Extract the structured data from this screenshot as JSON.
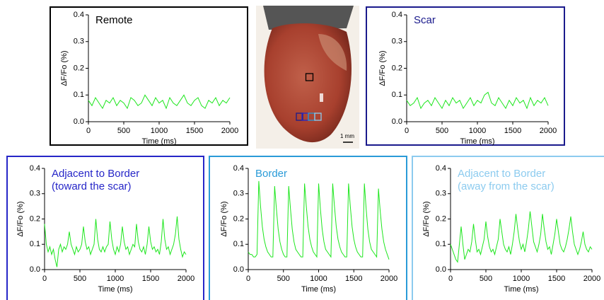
{
  "chart_data": [
    {
      "type": "line",
      "title": "Remote",
      "frame_color": "#000000",
      "color": "#1ee61e",
      "xlabel": "Time (ms)",
      "ylabel": "ΔF/Fo (%)",
      "xlim": [
        0,
        2000
      ],
      "xticks": [
        0,
        500,
        1000,
        1500,
        2000
      ],
      "ylim": [
        0,
        0.4
      ],
      "yticks": [
        {
          "value": 0,
          "label": "0.0"
        },
        0.1,
        0.2,
        0.3,
        0.4
      ],
      "x": [
        0,
        50,
        100,
        150,
        200,
        250,
        300,
        350,
        400,
        450,
        500,
        550,
        600,
        650,
        700,
        750,
        800,
        850,
        900,
        950,
        1000,
        1050,
        1100,
        1150,
        1200,
        1250,
        1300,
        1350,
        1400,
        1450,
        1500,
        1550,
        1600,
        1650,
        1700,
        1750,
        1800,
        1850,
        1900,
        1950,
        2000
      ],
      "values": [
        0.08,
        0.06,
        0.09,
        0.07,
        0.05,
        0.08,
        0.07,
        0.09,
        0.06,
        0.08,
        0.07,
        0.05,
        0.09,
        0.08,
        0.06,
        0.07,
        0.1,
        0.08,
        0.06,
        0.09,
        0.07,
        0.08,
        0.05,
        0.09,
        0.07,
        0.06,
        0.08,
        0.1,
        0.07,
        0.06,
        0.08,
        0.09,
        0.06,
        0.05,
        0.08,
        0.07,
        0.09,
        0.06,
        0.08,
        0.07,
        0.09
      ]
    },
    {
      "type": "line",
      "title": "Scar",
      "frame_color": "#1a1a8c",
      "color": "#1ee61e",
      "xlabel": "Time (ms)",
      "ylabel": "ΔF/Fo (%)",
      "xlim": [
        0,
        2000
      ],
      "xticks": [
        0,
        500,
        1000,
        1500,
        2000
      ],
      "ylim": [
        0,
        0.4
      ],
      "yticks": [
        {
          "value": 0,
          "label": "0.0"
        },
        0.1,
        0.2,
        0.3,
        0.4
      ],
      "x": [
        0,
        50,
        100,
        150,
        200,
        250,
        300,
        350,
        400,
        450,
        500,
        550,
        600,
        650,
        700,
        750,
        800,
        850,
        900,
        950,
        1000,
        1050,
        1100,
        1150,
        1200,
        1250,
        1300,
        1350,
        1400,
        1450,
        1500,
        1550,
        1600,
        1650,
        1700,
        1750,
        1800,
        1850,
        1900,
        1950,
        2000
      ],
      "values": [
        0.08,
        0.06,
        0.07,
        0.09,
        0.05,
        0.07,
        0.08,
        0.06,
        0.09,
        0.07,
        0.05,
        0.08,
        0.06,
        0.09,
        0.07,
        0.08,
        0.05,
        0.07,
        0.09,
        0.06,
        0.08,
        0.07,
        0.1,
        0.11,
        0.07,
        0.06,
        0.09,
        0.07,
        0.05,
        0.08,
        0.06,
        0.09,
        0.07,
        0.08,
        0.05,
        0.09,
        0.06,
        0.08,
        0.07,
        0.09,
        0.06
      ]
    },
    {
      "type": "line",
      "title": "Adjacent to Border",
      "subtitle": "(toward the scar)",
      "frame_color": "#2626c8",
      "color": "#1ee61e",
      "xlabel": "Time (ms)",
      "ylabel": "ΔF/Fo (%)",
      "xlim": [
        0,
        2000
      ],
      "xticks": [
        0,
        500,
        1000,
        1500,
        2000
      ],
      "ylim": [
        0,
        0.4
      ],
      "yticks": [
        {
          "value": 0,
          "label": "0.0"
        },
        0.1,
        0.2,
        0.3,
        0.4
      ],
      "x": [
        0,
        25,
        50,
        75,
        100,
        125,
        150,
        175,
        200,
        225,
        250,
        275,
        300,
        325,
        350,
        375,
        400,
        425,
        450,
        475,
        500,
        525,
        550,
        575,
        600,
        625,
        650,
        675,
        700,
        725,
        750,
        775,
        800,
        825,
        850,
        875,
        900,
        925,
        950,
        975,
        1000,
        1025,
        1050,
        1075,
        1100,
        1125,
        1150,
        1175,
        1200,
        1225,
        1250,
        1275,
        1300,
        1325,
        1350,
        1375,
        1400,
        1425,
        1450,
        1475,
        1500,
        1525,
        1550,
        1575,
        1600,
        1625,
        1650,
        1675,
        1700,
        1725,
        1750,
        1775,
        1800,
        1825,
        1850,
        1875,
        1900,
        1925,
        1950,
        1975,
        2000
      ],
      "values": [
        0.18,
        0.1,
        0.07,
        0.09,
        0.06,
        0.08,
        0.04,
        0.01,
        0.08,
        0.1,
        0.07,
        0.09,
        0.08,
        0.1,
        0.15,
        0.1,
        0.08,
        0.06,
        0.09,
        0.07,
        0.08,
        0.1,
        0.17,
        0.11,
        0.08,
        0.09,
        0.06,
        0.08,
        0.1,
        0.2,
        0.12,
        0.08,
        0.07,
        0.09,
        0.07,
        0.09,
        0.1,
        0.19,
        0.12,
        0.08,
        0.06,
        0.09,
        0.07,
        0.1,
        0.17,
        0.11,
        0.08,
        0.09,
        0.06,
        0.08,
        0.1,
        0.09,
        0.18,
        0.11,
        0.08,
        0.07,
        0.09,
        0.06,
        0.1,
        0.17,
        0.11,
        0.08,
        0.09,
        0.07,
        0.08,
        0.06,
        0.11,
        0.2,
        0.12,
        0.08,
        0.09,
        0.06,
        0.08,
        0.1,
        0.14,
        0.21,
        0.12,
        0.08,
        0.05,
        0.07,
        0.06
      ]
    },
    {
      "type": "line",
      "title": "Border",
      "frame_color": "#2a9bd8",
      "color": "#1ee61e",
      "xlabel": "Time (ms)",
      "ylabel": "ΔF/Fo (%)",
      "xlim": [
        0,
        2000
      ],
      "xticks": [
        0,
        500,
        1000,
        1500,
        2000
      ],
      "ylim": [
        0,
        0.4
      ],
      "yticks": [
        {
          "value": 0,
          "label": "0.0"
        },
        0.1,
        0.2,
        0.3,
        0.4
      ],
      "x": [
        0,
        25,
        50,
        75,
        100,
        125,
        150,
        175,
        200,
        225,
        250,
        275,
        300,
        325,
        350,
        375,
        400,
        425,
        450,
        475,
        500,
        525,
        550,
        575,
        600,
        625,
        650,
        675,
        700,
        725,
        750,
        775,
        800,
        825,
        850,
        875,
        900,
        925,
        950,
        975,
        1000,
        1025,
        1050,
        1075,
        1100,
        1125,
        1150,
        1175,
        1200,
        1225,
        1250,
        1275,
        1300,
        1325,
        1350,
        1375,
        1400,
        1425,
        1450,
        1475,
        1500,
        1525,
        1550,
        1575,
        1600,
        1625,
        1650,
        1675,
        1700,
        1725,
        1750,
        1775,
        1800,
        1825,
        1850,
        1875,
        1900,
        1925,
        1950,
        1975,
        2000
      ],
      "values": [
        0.07,
        0.06,
        0.06,
        0.05,
        0.05,
        0.06,
        0.35,
        0.25,
        0.17,
        0.12,
        0.09,
        0.07,
        0.06,
        0.05,
        0.05,
        0.33,
        0.24,
        0.16,
        0.11,
        0.08,
        0.06,
        0.05,
        0.05,
        0.33,
        0.24,
        0.16,
        0.11,
        0.08,
        0.07,
        0.06,
        0.05,
        0.05,
        0.34,
        0.25,
        0.17,
        0.12,
        0.09,
        0.07,
        0.06,
        0.05,
        0.34,
        0.24,
        0.16,
        0.11,
        0.08,
        0.07,
        0.06,
        0.05,
        0.34,
        0.25,
        0.17,
        0.12,
        0.09,
        0.07,
        0.06,
        0.05,
        0.05,
        0.34,
        0.25,
        0.17,
        0.12,
        0.09,
        0.07,
        0.06,
        0.05,
        0.05,
        0.34,
        0.24,
        0.16,
        0.11,
        0.08,
        0.07,
        0.06,
        0.05,
        0.32,
        0.23,
        0.16,
        0.11,
        0.08,
        0.06,
        0.04
      ]
    },
    {
      "type": "line",
      "title": "Adjacent to Border",
      "subtitle": "(away from the scar)",
      "frame_color": "#8ccbef",
      "color": "#1ee61e",
      "xlabel": "Time (ms)",
      "ylabel": "ΔF/Fo (%)",
      "xlim": [
        0,
        2000
      ],
      "xticks": [
        0,
        500,
        1000,
        1500,
        2000
      ],
      "ylim": [
        0,
        0.4
      ],
      "yticks": [
        {
          "value": 0,
          "label": "0.0"
        },
        0.1,
        0.2,
        0.3,
        0.4
      ],
      "x": [
        0,
        25,
        50,
        75,
        100,
        125,
        150,
        175,
        200,
        225,
        250,
        275,
        300,
        325,
        350,
        375,
        400,
        425,
        450,
        475,
        500,
        525,
        550,
        575,
        600,
        625,
        650,
        675,
        700,
        725,
        750,
        775,
        800,
        825,
        850,
        875,
        900,
        925,
        950,
        975,
        1000,
        1025,
        1050,
        1075,
        1100,
        1125,
        1150,
        1175,
        1200,
        1225,
        1250,
        1275,
        1300,
        1325,
        1350,
        1375,
        1400,
        1425,
        1450,
        1475,
        1500,
        1525,
        1550,
        1575,
        1600,
        1625,
        1650,
        1675,
        1700,
        1725,
        1750,
        1775,
        1800,
        1825,
        1850,
        1875,
        1900,
        1925,
        1950,
        1975,
        2000
      ],
      "values": [
        0.1,
        0.08,
        0.06,
        0.04,
        0.03,
        0.1,
        0.17,
        0.1,
        0.04,
        0.06,
        0.08,
        0.07,
        0.11,
        0.18,
        0.12,
        0.07,
        0.08,
        0.06,
        0.09,
        0.12,
        0.19,
        0.13,
        0.09,
        0.07,
        0.08,
        0.06,
        0.09,
        0.12,
        0.2,
        0.15,
        0.1,
        0.08,
        0.07,
        0.09,
        0.06,
        0.1,
        0.15,
        0.22,
        0.16,
        0.11,
        0.08,
        0.1,
        0.07,
        0.11,
        0.16,
        0.23,
        0.17,
        0.11,
        0.09,
        0.07,
        0.1,
        0.14,
        0.22,
        0.16,
        0.11,
        0.08,
        0.09,
        0.06,
        0.1,
        0.14,
        0.2,
        0.15,
        0.1,
        0.08,
        0.07,
        0.09,
        0.12,
        0.16,
        0.21,
        0.15,
        0.1,
        0.08,
        0.06,
        0.08,
        0.11,
        0.15,
        0.1,
        0.08,
        0.07,
        0.09,
        0.08
      ]
    }
  ],
  "image": {
    "scale_label": "1 mm"
  }
}
